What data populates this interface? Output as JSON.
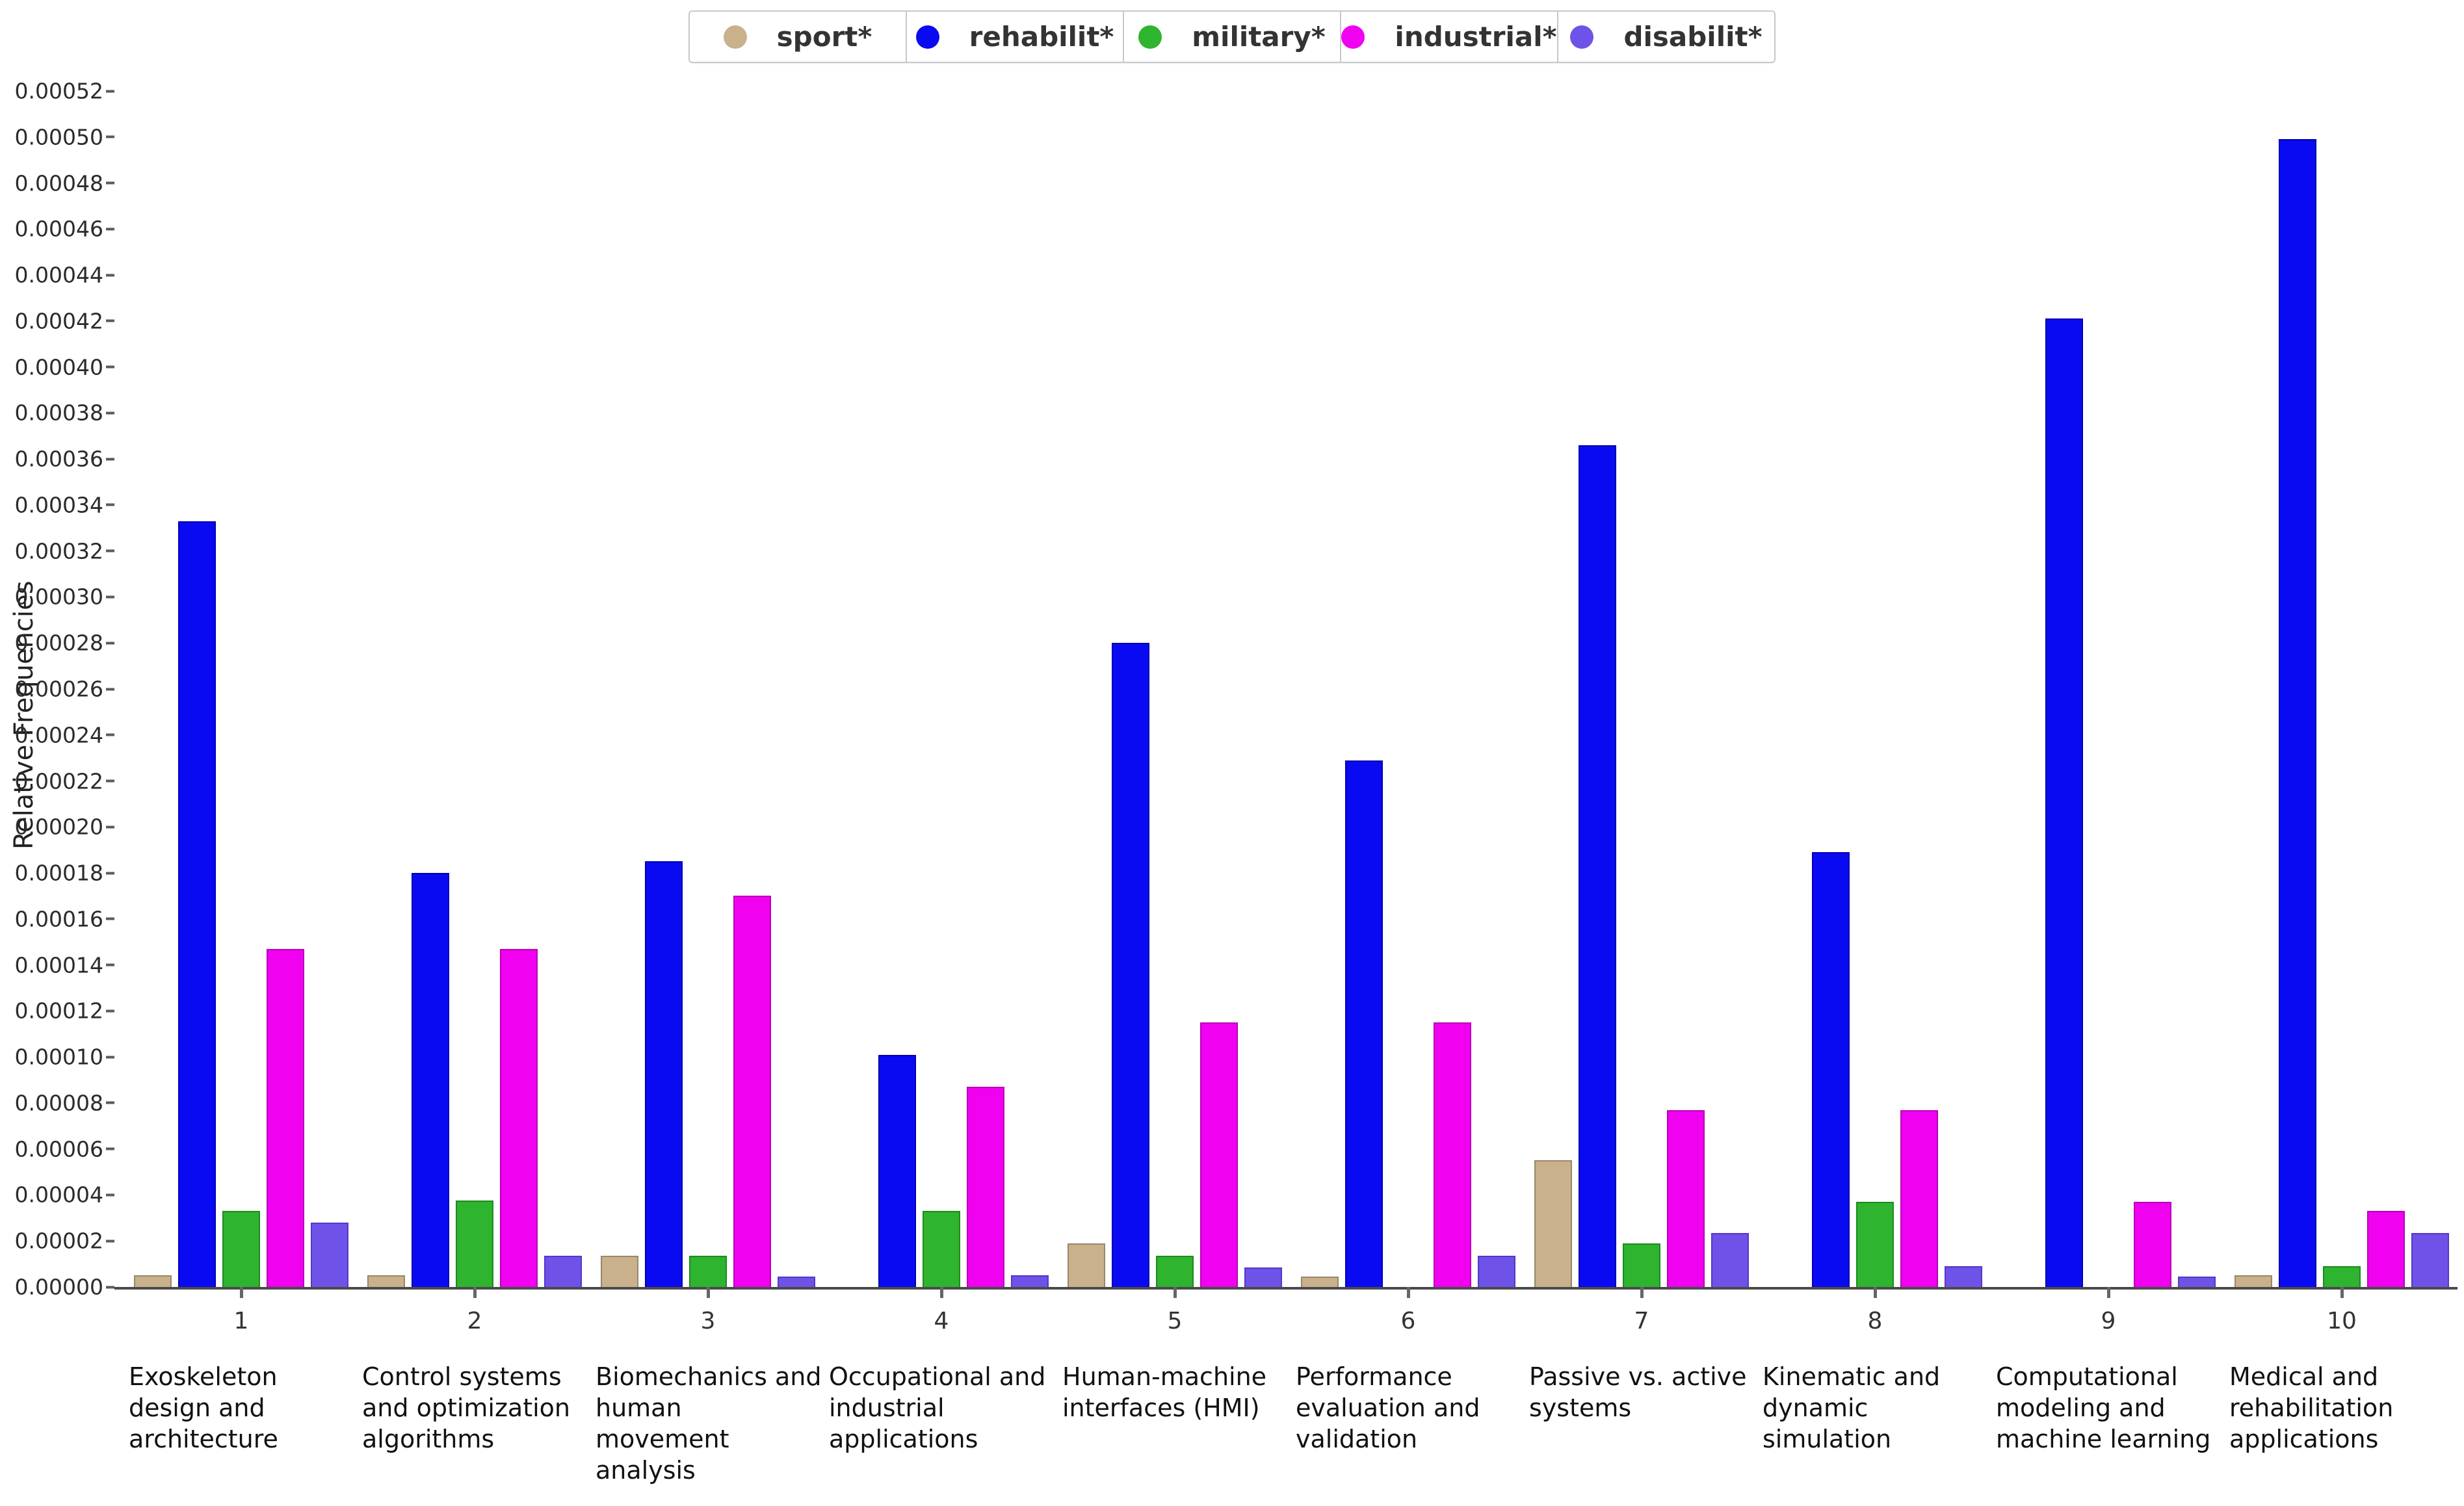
{
  "chart_data": {
    "type": "bar",
    "title": "",
    "xlabel": "",
    "ylabel": "Relative Frequencies",
    "ylim": [
      0,
      0.00052
    ],
    "y_tick_step": 2e-05,
    "grid": false,
    "legend_position": "top-center",
    "y_ticks": [
      "0.00000",
      "0.00002",
      "0.00004",
      "0.00006",
      "0.00008",
      "0.00010",
      "0.00012",
      "0.00014",
      "0.00016",
      "0.00018",
      "0.00020",
      "0.00022",
      "0.00024",
      "0.00026",
      "0.00028",
      "0.00030",
      "0.00032",
      "0.00034",
      "0.00036",
      "0.00038",
      "0.00040",
      "0.00042",
      "0.00044",
      "0.00046",
      "0.00048",
      "0.00050",
      "0.00052"
    ],
    "x_tick_labels": [
      "1",
      "2",
      "3",
      "4",
      "5",
      "6",
      "7",
      "8",
      "9",
      "10"
    ],
    "categories": [
      "Exoskeleton design and architecture",
      "Control systems and optimization algorithms",
      "Biomechanics and human movement analysis",
      "Occupational and industrial applications",
      "Human-machine interfaces (HMI)",
      "Performance evaluation and validation",
      "Passive vs. active systems",
      "Kinematic and dynamic simulation",
      "Computational modeling and machine learning",
      "Medical and rehabilitation applications"
    ],
    "series": [
      {
        "key": "sport",
        "name": "sport*",
        "color": "#c9b18c",
        "border": "#97876b",
        "values": [
          5e-06,
          5e-06,
          1.35e-05,
          0,
          1.9e-05,
          4.5e-06,
          5.5e-05,
          0,
          0,
          5e-06
        ]
      },
      {
        "key": "rehabilit",
        "name": "rehabilit*",
        "color": "#0a0af2",
        "border": "#0000b4",
        "values": [
          0.000333,
          0.00018,
          0.000185,
          0.000101,
          0.00028,
          0.000229,
          0.000366,
          0.000189,
          0.000421,
          0.000499
        ]
      },
      {
        "key": "military",
        "name": "military*",
        "color": "#2eb42e",
        "border": "#1f8a1f",
        "values": [
          3.3e-05,
          3.75e-05,
          1.35e-05,
          3.3e-05,
          1.35e-05,
          0,
          1.9e-05,
          3.7e-05,
          0,
          9e-06
        ]
      },
      {
        "key": "industrial",
        "name": "industrial*",
        "color": "#f001f0",
        "border": "#b800b8",
        "values": [
          0.000147,
          0.000147,
          0.00017,
          8.7e-05,
          0.000115,
          0.000115,
          7.7e-05,
          7.7e-05,
          3.7e-05,
          3.3e-05
        ]
      },
      {
        "key": "disabilit",
        "name": "disabilit*",
        "color": "#6f52e8",
        "border": "#5538c8",
        "values": [
          2.8e-05,
          1.35e-05,
          4.5e-06,
          5e-06,
          8.5e-06,
          1.35e-05,
          2.35e-05,
          9e-06,
          4.5e-06,
          2.35e-05
        ]
      }
    ]
  }
}
